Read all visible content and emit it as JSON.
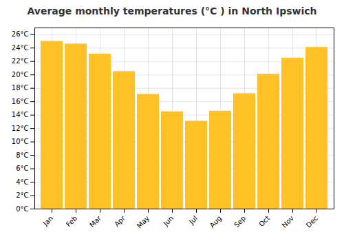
{
  "chart_data": {
    "type": "bar",
    "title": "Average monthly temperatures (°C ) in North Ipswich",
    "categories": [
      "Jan",
      "Feb",
      "Mar",
      "Apr",
      "May",
      "Jun",
      "Jul",
      "Aug",
      "Sep",
      "Oct",
      "Nov",
      "Dec"
    ],
    "values": [
      25.0,
      24.6,
      23.1,
      20.5,
      17.1,
      14.5,
      13.1,
      14.6,
      17.2,
      20.1,
      22.5,
      24.1
    ],
    "color": "#FFC125",
    "ylim": [
      0,
      27
    ],
    "yticks": [
      {
        "value": 0,
        "label": "0°C"
      },
      {
        "value": 2,
        "label": "2°C"
      },
      {
        "value": 4,
        "label": "4°C"
      },
      {
        "value": 6,
        "label": "6°C"
      },
      {
        "value": 8,
        "label": "8°C"
      },
      {
        "value": 10,
        "label": "10°C"
      },
      {
        "value": 12,
        "label": "12°C"
      },
      {
        "value": 14,
        "label": "14°C"
      },
      {
        "value": 16,
        "label": "16°C"
      },
      {
        "value": 18,
        "label": "18°C"
      },
      {
        "value": 20,
        "label": "20°C"
      },
      {
        "value": 22,
        "label": "22°C"
      },
      {
        "value": 24,
        "label": "24°C"
      },
      {
        "value": 26,
        "label": "26°C"
      }
    ],
    "grid": true
  }
}
